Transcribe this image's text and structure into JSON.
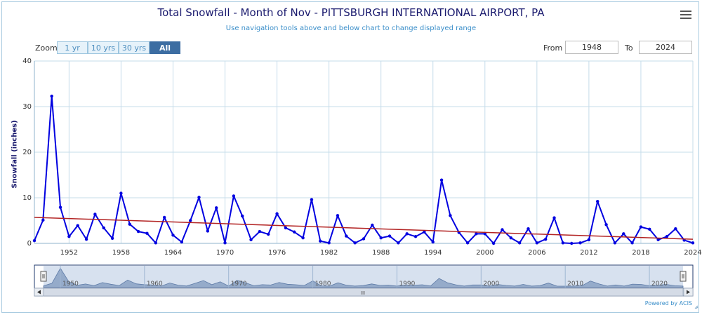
{
  "header": {
    "title": "Total Snowfall - Month of Nov - PITTSBURGH INTERNATIONAL AIRPORT, PA",
    "subtitle": "Use navigation tools above and below chart to change displayed range"
  },
  "zoom": {
    "label": "Zoom",
    "buttons": [
      "1 yr",
      "10 yrs",
      "30 yrs",
      "All"
    ],
    "active": "All"
  },
  "range": {
    "from_label": "From",
    "from_value": "1948",
    "to_label": "To",
    "to_value": "2024"
  },
  "footer": {
    "credit": "Powered by ACIS"
  },
  "navigator": {
    "year_ticks": [
      "1950",
      "1960",
      "1970",
      "1980",
      "1990",
      "2000",
      "2010",
      "2020"
    ],
    "scroll_grip": "III"
  },
  "colors": {
    "series": "#0000e0",
    "trend": "#b22222",
    "grid": "#c5dcea",
    "title": "#1a1a6e",
    "accent": "#3a8ec9"
  },
  "chart_data": {
    "type": "line",
    "title": "Total Snowfall - Month of Nov - PITTSBURGH INTERNATIONAL AIRPORT, PA",
    "ylabel": "Snowfall (inches)",
    "xlabel": "",
    "ylim": [
      0,
      40
    ],
    "xlim": [
      1948,
      2024
    ],
    "yticks": [
      0,
      10,
      20,
      30,
      40
    ],
    "xticks": [
      1952,
      1958,
      1964,
      1970,
      1976,
      1982,
      1988,
      1994,
      2000,
      2006,
      2012,
      2018,
      2024
    ],
    "grid": true,
    "series": [
      {
        "x": [
          1948,
          1949,
          1950,
          1951,
          1952,
          1953,
          1954,
          1955,
          1956,
          1957,
          1958,
          1959,
          1960,
          1961,
          1962,
          1963,
          1964,
          1965,
          1966,
          1967,
          1968,
          1969,
          1970,
          1971,
          1972,
          1973,
          1974,
          1975,
          1976,
          1977,
          1978,
          1979,
          1980,
          1981,
          1982,
          1983,
          1984,
          1985,
          1986,
          1987,
          1988,
          1989,
          1990,
          1991,
          1992,
          1993,
          1994,
          1995,
          1996,
          1997,
          1998,
          1999,
          2000,
          2001,
          2002,
          2003,
          2004,
          2005,
          2006,
          2007,
          2008,
          2009,
          2010,
          2011,
          2012,
          2013,
          2014,
          2015,
          2016,
          2017,
          2018,
          2019,
          2020,
          2021,
          2022,
          2023,
          2024
        ],
        "values": [
          0.6,
          5.1,
          32.3,
          7.9,
          1.5,
          3.9,
          0.9,
          6.4,
          3.4,
          1.1,
          11.0,
          4.2,
          2.6,
          2.2,
          0.1,
          5.7,
          1.8,
          0.3,
          5.0,
          10.1,
          2.7,
          7.8,
          0.1,
          10.4,
          6.0,
          0.8,
          2.6,
          2.0,
          6.5,
          3.4,
          2.5,
          1.2,
          9.6,
          0.5,
          0.1,
          6.1,
          1.6,
          0.1,
          1.0,
          4.0,
          1.2,
          1.6,
          0.1,
          2.1,
          1.5,
          2.5,
          0.3,
          13.9,
          6.1,
          2.4,
          0.1,
          2.1,
          2.1,
          0.0,
          3.0,
          1.2,
          0.1,
          3.2,
          0.1,
          0.9,
          5.6,
          0.1,
          0.0,
          0.1,
          0.8,
          9.2,
          4.1,
          0.1,
          2.1,
          0.1,
          3.6,
          3.1,
          0.8,
          1.5,
          3.2,
          0.7,
          0.1
        ]
      },
      {
        "name": "trend",
        "x": [
          1948,
          2024
        ],
        "values": [
          5.7,
          0.9
        ]
      }
    ]
  }
}
